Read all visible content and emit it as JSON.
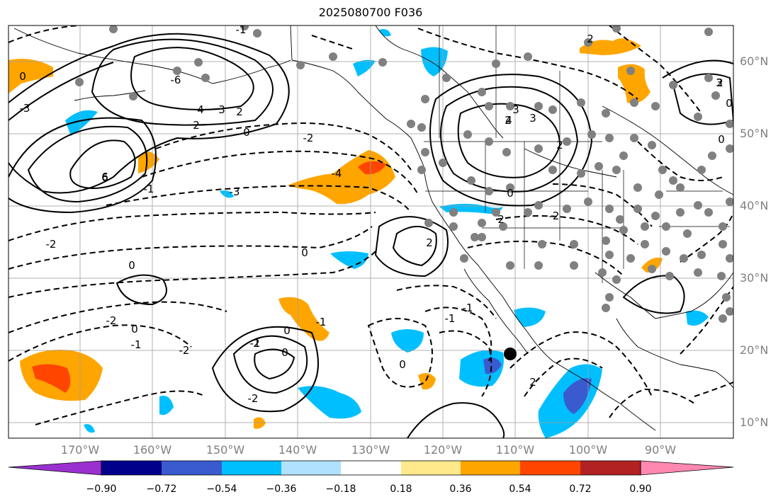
{
  "title": "2025080700 F036",
  "lat_labels": [
    "60°N",
    "50°N",
    "40°N",
    "30°N",
    "20°N",
    "10°N"
  ],
  "lon_labels": [
    "170°W",
    "160°W",
    "150°W",
    "140°W",
    "130°W",
    "120°W",
    "110°W",
    "100°W",
    "90°W"
  ],
  "contour_labels": [
    "0",
    "-3",
    "-6",
    "6",
    "4",
    "3",
    "2",
    "2",
    "0",
    "6",
    "-1",
    "-1",
    "-3",
    "-2",
    "0",
    "-2",
    "0",
    "-4",
    "2",
    "2",
    "0",
    "3",
    "4",
    "3",
    "2",
    "-2",
    "2",
    "2",
    "0",
    "-2",
    "0",
    "-1",
    "-2",
    "-1",
    "-2",
    "2",
    "0",
    "0",
    "-1",
    "-1",
    "-1",
    "0",
    "2",
    "2",
    "0",
    "3"
  ],
  "colorbar": {
    "ticks": [
      "−0.90",
      "−0.72",
      "−0.54",
      "−0.36",
      "−0.18",
      "0.18",
      "0.36",
      "0.54",
      "0.72",
      "0.90"
    ],
    "colors": [
      "#9b30d0",
      "#00008b",
      "#3a5bd0",
      "#00bfff",
      "#b0e2ff",
      "#ffffff",
      "#ffe98a",
      "#ffa500",
      "#ff4500",
      "#b22222",
      "#ff88b0"
    ]
  },
  "markers": {
    "big_marker_color": "#000000",
    "station_color": "#808080"
  }
}
